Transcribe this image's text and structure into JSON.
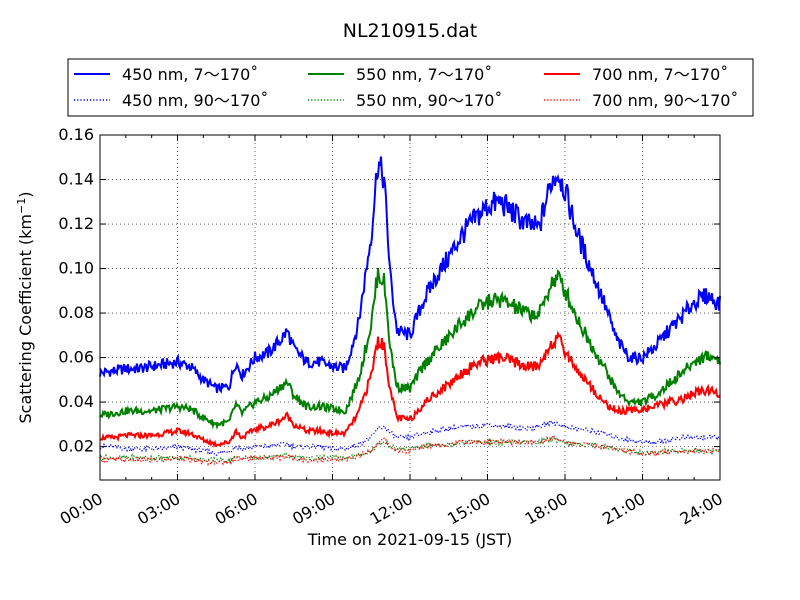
{
  "chart_data": {
    "type": "line",
    "title": "NL210915.dat",
    "xlabel": "Time on 2021-09-15 (JST)",
    "ylabel": "Scattering Coefficient (km",
    "ylabel_unit_exp": "−1",
    "ylabel_close": ")",
    "xlim": [
      0,
      24
    ],
    "ylim": [
      0.005,
      0.16
    ],
    "x_ticks": [
      0,
      3,
      6,
      9,
      12,
      15,
      18,
      21,
      24
    ],
    "x_tick_labels": [
      "00:00",
      "03:00",
      "06:00",
      "09:00",
      "12:00",
      "15:00",
      "18:00",
      "21:00",
      "24:00"
    ],
    "y_ticks": [
      0.02,
      0.04,
      0.06,
      0.08,
      0.1,
      0.12,
      0.14,
      0.16
    ],
    "y_tick_labels": [
      "0.02",
      "0.04",
      "0.06",
      "0.08",
      "0.10",
      "0.12",
      "0.14",
      "0.16"
    ],
    "grid": true,
    "legend_placement": "top, above plot",
    "x": [
      0,
      0.5,
      1,
      1.5,
      2,
      2.5,
      3,
      3.5,
      4,
      4.5,
      5,
      5.25,
      5.5,
      6,
      6.5,
      7,
      7.25,
      7.5,
      8,
      8.5,
      9,
      9.5,
      10,
      10.5,
      10.75,
      11,
      11.25,
      11.5,
      12,
      12.5,
      13,
      13.5,
      14,
      14.5,
      15,
      15.5,
      16,
      16.5,
      17,
      17.25,
      17.5,
      17.75,
      18,
      18.5,
      19,
      19.5,
      20,
      20.5,
      21,
      21.5,
      22,
      22.5,
      23,
      23.5,
      24
    ],
    "series": [
      {
        "name": "450 nm, 7～170˚",
        "color": "#0000ff",
        "style": "solid",
        "values": [
          0.053,
          0.054,
          0.055,
          0.055,
          0.056,
          0.057,
          0.058,
          0.056,
          0.05,
          0.046,
          0.047,
          0.058,
          0.052,
          0.06,
          0.062,
          0.068,
          0.072,
          0.064,
          0.058,
          0.058,
          0.056,
          0.055,
          0.075,
          0.115,
          0.148,
          0.14,
          0.095,
          0.072,
          0.07,
          0.085,
          0.096,
          0.105,
          0.115,
          0.122,
          0.128,
          0.13,
          0.125,
          0.12,
          0.118,
          0.13,
          0.14,
          0.143,
          0.135,
          0.115,
          0.1,
          0.085,
          0.068,
          0.06,
          0.06,
          0.065,
          0.072,
          0.078,
          0.085,
          0.088,
          0.084
        ]
      },
      {
        "name": "450 nm, 90～170˚",
        "color": "#0000ff",
        "style": "dotted",
        "values": [
          0.02,
          0.02,
          0.019,
          0.019,
          0.019,
          0.019,
          0.02,
          0.019,
          0.018,
          0.017,
          0.018,
          0.02,
          0.019,
          0.02,
          0.02,
          0.021,
          0.021,
          0.02,
          0.02,
          0.02,
          0.019,
          0.019,
          0.021,
          0.024,
          0.028,
          0.029,
          0.026,
          0.024,
          0.024,
          0.026,
          0.027,
          0.028,
          0.029,
          0.029,
          0.03,
          0.029,
          0.029,
          0.028,
          0.029,
          0.03,
          0.031,
          0.03,
          0.029,
          0.028,
          0.027,
          0.026,
          0.024,
          0.023,
          0.022,
          0.022,
          0.023,
          0.024,
          0.024,
          0.024,
          0.024
        ]
      },
      {
        "name": "550 nm, 7～170˚",
        "color": "#008000",
        "style": "solid",
        "values": [
          0.034,
          0.035,
          0.036,
          0.036,
          0.036,
          0.037,
          0.038,
          0.037,
          0.033,
          0.03,
          0.031,
          0.039,
          0.035,
          0.04,
          0.042,
          0.047,
          0.049,
          0.043,
          0.038,
          0.038,
          0.037,
          0.036,
          0.05,
          0.075,
          0.098,
          0.094,
          0.063,
          0.047,
          0.046,
          0.056,
          0.063,
          0.069,
          0.076,
          0.081,
          0.085,
          0.086,
          0.083,
          0.08,
          0.079,
          0.087,
          0.094,
          0.096,
          0.09,
          0.077,
          0.066,
          0.056,
          0.045,
          0.04,
          0.04,
          0.043,
          0.048,
          0.053,
          0.058,
          0.061,
          0.059
        ]
      },
      {
        "name": "550 nm, 90～170˚",
        "color": "#008000",
        "style": "dotted",
        "values": [
          0.015,
          0.015,
          0.015,
          0.015,
          0.015,
          0.015,
          0.015,
          0.015,
          0.014,
          0.014,
          0.014,
          0.015,
          0.015,
          0.015,
          0.015,
          0.016,
          0.016,
          0.015,
          0.015,
          0.015,
          0.015,
          0.015,
          0.016,
          0.018,
          0.021,
          0.022,
          0.02,
          0.019,
          0.019,
          0.02,
          0.021,
          0.021,
          0.022,
          0.022,
          0.022,
          0.022,
          0.022,
          0.022,
          0.022,
          0.023,
          0.023,
          0.023,
          0.022,
          0.021,
          0.021,
          0.02,
          0.019,
          0.018,
          0.017,
          0.017,
          0.018,
          0.018,
          0.018,
          0.018,
          0.018
        ]
      },
      {
        "name": "700 nm, 7～170˚",
        "color": "#ff0000",
        "style": "solid",
        "values": [
          0.024,
          0.024,
          0.025,
          0.025,
          0.025,
          0.026,
          0.027,
          0.026,
          0.023,
          0.021,
          0.022,
          0.027,
          0.024,
          0.028,
          0.029,
          0.032,
          0.034,
          0.03,
          0.027,
          0.027,
          0.026,
          0.026,
          0.035,
          0.052,
          0.068,
          0.065,
          0.044,
          0.033,
          0.032,
          0.039,
          0.044,
          0.048,
          0.053,
          0.057,
          0.059,
          0.06,
          0.058,
          0.056,
          0.056,
          0.062,
          0.067,
          0.068,
          0.063,
          0.054,
          0.047,
          0.04,
          0.036,
          0.036,
          0.037,
          0.038,
          0.04,
          0.041,
          0.044,
          0.045,
          0.044
        ]
      },
      {
        "name": "700 nm, 90～170˚",
        "color": "#ff0000",
        "style": "dotted",
        "values": [
          0.014,
          0.014,
          0.014,
          0.014,
          0.014,
          0.014,
          0.015,
          0.014,
          0.013,
          0.013,
          0.013,
          0.015,
          0.014,
          0.015,
          0.015,
          0.015,
          0.016,
          0.015,
          0.014,
          0.014,
          0.014,
          0.014,
          0.016,
          0.018,
          0.022,
          0.023,
          0.02,
          0.018,
          0.018,
          0.02,
          0.021,
          0.021,
          0.022,
          0.022,
          0.022,
          0.022,
          0.022,
          0.022,
          0.022,
          0.023,
          0.024,
          0.023,
          0.022,
          0.021,
          0.021,
          0.02,
          0.019,
          0.018,
          0.017,
          0.017,
          0.018,
          0.018,
          0.018,
          0.018,
          0.018
        ]
      }
    ]
  }
}
